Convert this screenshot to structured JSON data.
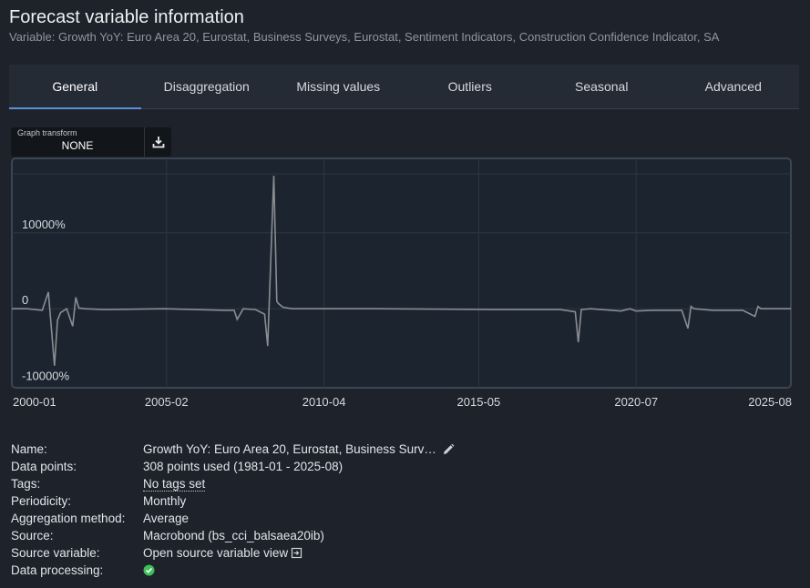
{
  "header": {
    "title": "Forecast variable information",
    "subtitle": "Variable: Growth YoY: Euro Area 20, Eurostat, Business Surveys, Eurostat, Sentiment Indicators, Construction Confidence Indicator, SA"
  },
  "tabs": [
    {
      "label": "General",
      "active": true
    },
    {
      "label": "Disaggregation"
    },
    {
      "label": "Missing values"
    },
    {
      "label": "Outliers"
    },
    {
      "label": "Seasonal"
    },
    {
      "label": "Advanced"
    }
  ],
  "graph_transform": {
    "label": "Graph transform",
    "value": "NONE",
    "download_icon": "download-icon"
  },
  "chart_data": {
    "type": "line",
    "y_tick_labels": [
      "10000%",
      "0",
      "-10000%"
    ],
    "y_ticks": [
      10000,
      0,
      -10000
    ],
    "ylim": [
      -10400,
      19800
    ],
    "x_tick_labels": [
      "2000-01",
      "2005-02",
      "2010-04",
      "2015-05",
      "2020-07",
      "2025-08"
    ],
    "x_ticks": [
      2000.0,
      2005.08,
      2010.25,
      2015.33,
      2020.5,
      2025.58
    ],
    "xlim": [
      2000.0,
      2025.58
    ],
    "grid": true,
    "line_color": "#8a8d92",
    "series": [
      {
        "x": [
          2000.0,
          2000.5,
          2001.0,
          2001.2,
          2001.4,
          2001.5,
          2001.6,
          2001.8,
          2002.0,
          2002.1,
          2002.2,
          2002.4,
          2003.0,
          2005.0,
          2007.0,
          2007.3,
          2007.4,
          2007.6,
          2008.0,
          2008.3,
          2008.4,
          2008.6,
          2008.7,
          2008.75,
          2008.9,
          2009.2,
          2010.0,
          2012.0,
          2016.0,
          2018.0,
          2018.5,
          2018.6,
          2018.7,
          2019.0,
          2020.0,
          2020.3,
          2020.5,
          2021.0,
          2022.0,
          2022.2,
          2022.3,
          2022.4,
          2023.0,
          2024.0,
          2024.4,
          2024.5,
          2024.6,
          2025.0,
          2025.58
        ],
        "y": [
          0,
          0,
          -200,
          2200,
          -7500,
          -1500,
          -500,
          0,
          -2300,
          1500,
          100,
          0,
          -100,
          0,
          -200,
          -200,
          -1400,
          0,
          -100,
          -700,
          -4900,
          17500,
          1000,
          700,
          200,
          0,
          0,
          0,
          -100,
          -100,
          -400,
          -4400,
          -100,
          0,
          -300,
          0,
          -300,
          -200,
          -200,
          -2600,
          300,
          0,
          -200,
          -200,
          -1000,
          300,
          0,
          0,
          0
        ]
      }
    ]
  },
  "details": {
    "rows": [
      {
        "label": "Name:",
        "value": "Growth YoY: Euro Area 20, Eurostat, Business Surv…"
      },
      {
        "label": "Data points:",
        "value": "308 points used (1981-01 - 2025-08)"
      },
      {
        "label": "Tags:",
        "value": "No tags set"
      },
      {
        "label": "Periodicity:",
        "value": "Monthly"
      },
      {
        "label": "Aggregation method:",
        "value": "Average"
      },
      {
        "label": "Source:",
        "value": "Macrobond (bs_cci_balsaea20ib)"
      },
      {
        "label": "Source variable:",
        "value": "Open source variable view"
      },
      {
        "label": "Data processing:",
        "status_color": "#3fbf5a"
      }
    ]
  }
}
